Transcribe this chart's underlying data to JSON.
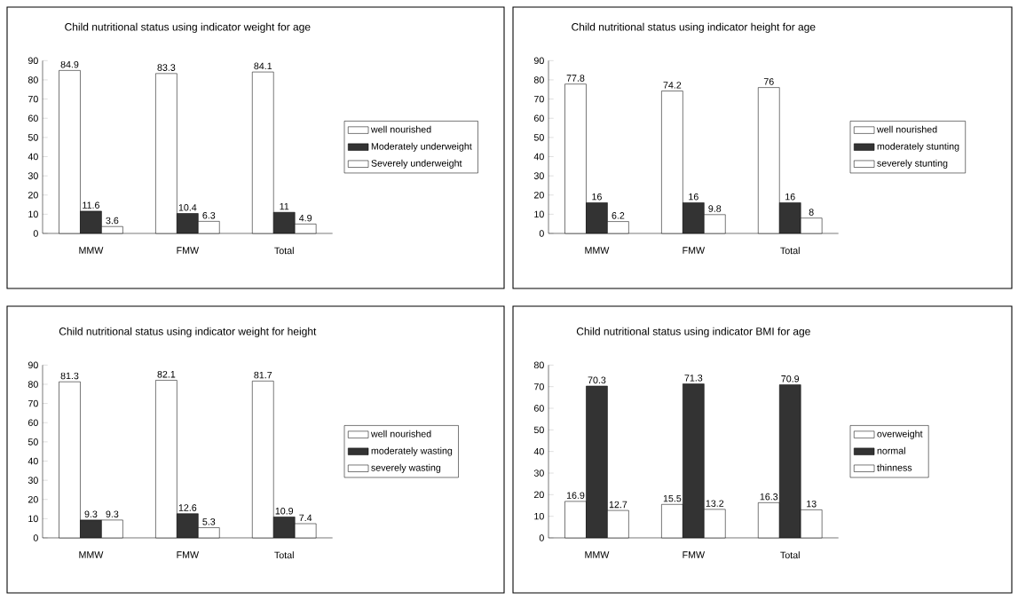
{
  "chart_data": [
    {
      "type": "bar",
      "title": "Child nutritional status using indicator weight for age",
      "categories": [
        "MMW",
        "FMW",
        "Total"
      ],
      "ylim": [
        0,
        90
      ],
      "yticks": [
        0,
        10,
        20,
        30,
        40,
        50,
        60,
        70,
        80,
        90
      ],
      "data_labels": true,
      "legend": "right",
      "grid": false,
      "series": [
        {
          "name": "well nourished",
          "color": "#ffffff",
          "values": [
            84.9,
            83.3,
            84.1
          ]
        },
        {
          "name": "Moderately underweight",
          "color": "#333333",
          "values": [
            11.6,
            10.4,
            11
          ]
        },
        {
          "name": "Severely underweight",
          "color": "#ffffff",
          "values": [
            3.6,
            6.3,
            4.9
          ]
        }
      ]
    },
    {
      "type": "bar",
      "title": "Child nutritional status using indicator height for age",
      "categories": [
        "MMW",
        "FMW",
        "Total"
      ],
      "ylim": [
        0,
        90
      ],
      "yticks": [
        0,
        10,
        20,
        30,
        40,
        50,
        60,
        70,
        80,
        90
      ],
      "data_labels": true,
      "legend": "right",
      "grid": false,
      "series": [
        {
          "name": "well nourished",
          "color": "#ffffff",
          "values": [
            77.8,
            74.2,
            76
          ]
        },
        {
          "name": "moderately stunting",
          "color": "#333333",
          "values": [
            16,
            16,
            16
          ]
        },
        {
          "name": "severely stunting",
          "color": "#ffffff",
          "values": [
            6.2,
            9.8,
            8
          ]
        }
      ]
    },
    {
      "type": "bar",
      "title": "Child nutritional status using indicator weight for height",
      "categories": [
        "MMW",
        "FMW",
        "Total"
      ],
      "ylim": [
        0,
        90
      ],
      "yticks": [
        0,
        10,
        20,
        30,
        40,
        50,
        60,
        70,
        80,
        90
      ],
      "data_labels": true,
      "legend": "right",
      "grid": false,
      "series": [
        {
          "name": "well nourished",
          "color": "#ffffff",
          "values": [
            81.3,
            82.1,
            81.7
          ]
        },
        {
          "name": "moderately wasting",
          "color": "#333333",
          "values": [
            9.3,
            12.6,
            10.9
          ]
        },
        {
          "name": "severely wasting",
          "color": "#ffffff",
          "values": [
            9.3,
            5.3,
            7.4
          ]
        }
      ]
    },
    {
      "type": "bar",
      "title": "Child nutritional status using indicator BMI for age",
      "categories": [
        "MMW",
        "FMW",
        "Total"
      ],
      "ylim": [
        0,
        80
      ],
      "yticks": [
        0,
        10,
        20,
        30,
        40,
        50,
        60,
        70,
        80
      ],
      "data_labels": true,
      "legend": "right",
      "grid": false,
      "series": [
        {
          "name": "overweight",
          "color": "#ffffff",
          "values": [
            16.9,
            15.5,
            16.3
          ]
        },
        {
          "name": "normal",
          "color": "#333333",
          "values": [
            70.3,
            71.3,
            70.9
          ]
        },
        {
          "name": "thinness",
          "color": "#ffffff",
          "values": [
            12.7,
            13.2,
            13
          ]
        }
      ]
    }
  ]
}
